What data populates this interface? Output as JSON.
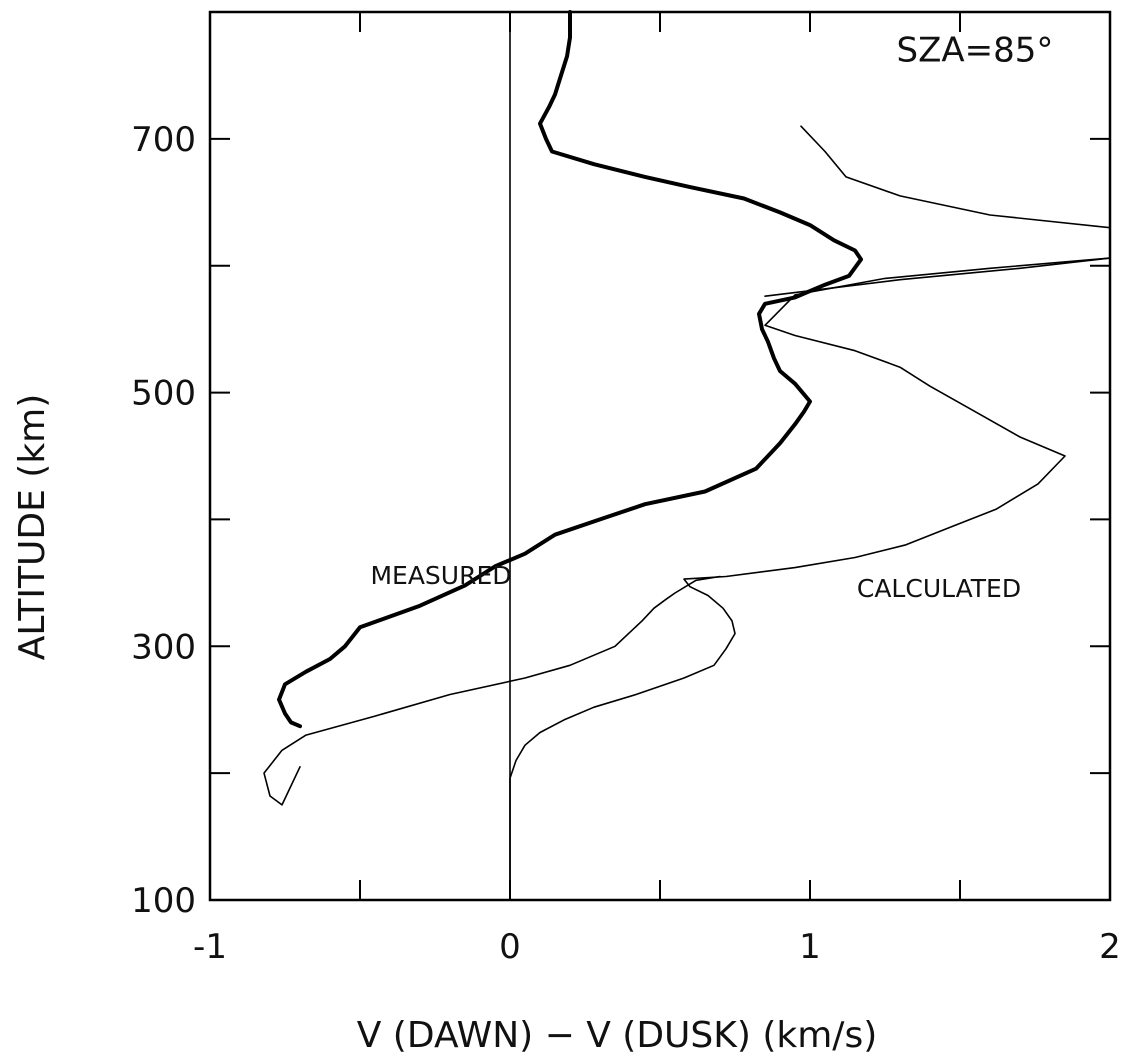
{
  "chart_data": {
    "type": "line",
    "title": "",
    "xlabel": "V (DAWN) − V (DUSK)  (km/s)",
    "ylabel": "ALTITUDE  (km)",
    "xlim": [
      -1,
      2
    ],
    "ylim": [
      100,
      800
    ],
    "x_ticks": [
      -1,
      0,
      1,
      2
    ],
    "x_tick_labels": [
      "-1",
      "0",
      "1",
      "2"
    ],
    "y_ticks": [
      100,
      300,
      500,
      700
    ],
    "y_tick_labels": [
      "100",
      "300",
      "500",
      "700"
    ],
    "y_minor_ticks": [
      200,
      400,
      600
    ],
    "x_minor_ticks": [
      -0.5,
      0.5,
      1.5
    ],
    "grid": false,
    "reference_line_x": 0,
    "annotations": [
      {
        "text": "SZA=85°",
        "x": 1.55,
        "y": 761
      },
      {
        "text": "MEASURED",
        "x": -0.23,
        "y": 349
      },
      {
        "text": "CALCULATED",
        "x": 1.43,
        "y": 339
      }
    ],
    "series": [
      {
        "name": "",
        "color": "#000000",
        "weight": "thick",
        "x": [
          0.2,
          0.2,
          0.19,
          0.17,
          0.15,
          0.13,
          0.1,
          0.12,
          0.14,
          0.28,
          0.45,
          0.6,
          0.78,
          0.9,
          1.0,
          1.08,
          1.15,
          1.17,
          1.13,
          1.05,
          0.95,
          0.85,
          0.83,
          0.84,
          0.86,
          0.88,
          0.9,
          0.95,
          1.0,
          0.98,
          0.95,
          0.9,
          0.82,
          0.65,
          0.45,
          0.3,
          0.15,
          0.05,
          -0.05,
          -0.15,
          -0.3,
          -0.5,
          -0.55,
          -0.6,
          -0.68,
          -0.75,
          -0.77,
          -0.75,
          -0.73,
          -0.7
        ],
        "y": [
          800,
          780,
          765,
          750,
          735,
          725,
          712,
          700,
          690,
          680,
          670,
          662,
          653,
          642,
          632,
          620,
          612,
          605,
          592,
          585,
          575,
          570,
          562,
          550,
          540,
          527,
          517,
          507,
          493,
          485,
          475,
          460,
          440,
          422,
          412,
          400,
          388,
          373,
          363,
          348,
          332,
          315,
          300,
          290,
          280,
          270,
          258,
          247,
          240,
          237
        ]
      },
      {
        "name": "",
        "color": "#000000",
        "weight": "thin",
        "x": [
          0.0,
          0.0,
          0.0,
          0.02,
          0.05,
          0.1,
          0.18,
          0.28,
          0.42,
          0.58,
          0.68,
          0.72,
          0.75,
          0.74,
          0.71,
          0.66,
          0.6,
          0.58,
          0.72,
          0.95,
          1.15,
          1.32,
          1.48,
          1.62,
          1.76,
          1.85,
          1.7,
          1.55,
          1.4,
          1.3,
          1.15,
          0.95,
          0.85,
          0.95,
          1.25,
          1.6,
          2.0
        ],
        "y": [
          100,
          180,
          196,
          210,
          222,
          232,
          242,
          252,
          262,
          275,
          285,
          298,
          310,
          320,
          330,
          340,
          347,
          353,
          355,
          362,
          370,
          380,
          395,
          408,
          428,
          450,
          465,
          485,
          505,
          520,
          533,
          545,
          553,
          577,
          590,
          598,
          606
        ]
      },
      {
        "name": "",
        "color": "#000000",
        "weight": "thin",
        "x": [
          0.85,
          1.3,
          1.7,
          2.0
        ],
        "y": [
          576,
          589,
          598,
          606
        ]
      },
      {
        "name": "",
        "color": "#000000",
        "weight": "thin",
        "x": [
          0.97,
          1.05,
          1.12,
          1.3,
          1.6,
          2.0
        ],
        "y": [
          710,
          690,
          670,
          655,
          640,
          630
        ]
      },
      {
        "name": "",
        "color": "#000000",
        "weight": "thin",
        "x": [
          0.7,
          0.62,
          0.55,
          0.52,
          0.48,
          0.44,
          0.35,
          0.2,
          0.05,
          -0.2,
          -0.45,
          -0.68,
          -0.76,
          -0.82,
          -0.8,
          -0.76,
          -0.7
        ],
        "y": [
          355,
          352,
          342,
          337,
          330,
          320,
          300,
          285,
          275,
          262,
          245,
          230,
          218,
          200,
          182,
          175,
          205
        ]
      }
    ]
  }
}
